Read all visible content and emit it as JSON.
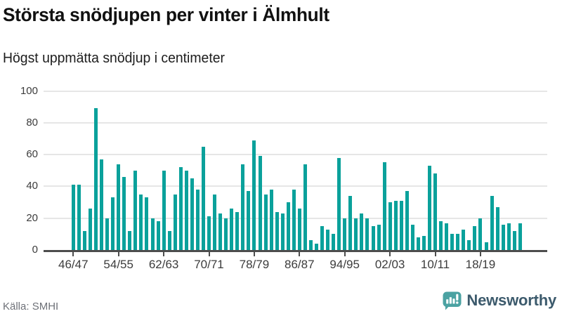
{
  "header": {
    "title": "Största snödjupen per vinter i Älmhult",
    "subtitle": "Högst uppmätta snödjup i centimeter"
  },
  "chart_data": {
    "type": "bar",
    "title": "Största snödjupen per vinter i Älmhult",
    "subtitle": "Högst uppmätta snödjup i centimeter",
    "unit": "cm",
    "ylim": [
      0,
      100
    ],
    "y_ticks": [
      0,
      20,
      40,
      60,
      80,
      100
    ],
    "x_tick_labels": [
      "46/47",
      "54/55",
      "62/63",
      "70/71",
      "78/79",
      "86/87",
      "94/95",
      "02/03",
      "10/11",
      "18/19"
    ],
    "grid": "horizontal",
    "legend": "none",
    "categories": [
      "46/47",
      "47/48",
      "48/49",
      "49/50",
      "50/51",
      "51/52",
      "52/53",
      "53/54",
      "54/55",
      "55/56",
      "56/57",
      "57/58",
      "58/59",
      "59/60",
      "60/61",
      "61/62",
      "62/63",
      "63/64",
      "64/65",
      "65/66",
      "66/67",
      "67/68",
      "68/69",
      "69/70",
      "70/71",
      "71/72",
      "72/73",
      "73/74",
      "74/75",
      "75/76",
      "76/77",
      "77/78",
      "78/79",
      "79/80",
      "80/81",
      "81/82",
      "82/83",
      "83/84",
      "84/85",
      "85/86",
      "86/87",
      "87/88",
      "88/89",
      "89/90",
      "90/91",
      "91/92",
      "92/93",
      "93/94",
      "94/95",
      "95/96",
      "96/97",
      "97/98",
      "98/99",
      "99/00",
      "00/01",
      "01/02",
      "02/03",
      "03/04",
      "04/05",
      "05/06",
      "06/07",
      "07/08",
      "08/09",
      "09/10",
      "10/11",
      "11/12",
      "12/13",
      "13/14",
      "14/15",
      "15/16",
      "16/17",
      "17/18",
      "18/19",
      "19/20",
      "20/21",
      "21/22",
      "22/23",
      "23/24",
      "24/25",
      "25/26"
    ],
    "values": [
      41,
      41,
      12,
      26,
      89,
      57,
      20,
      33,
      54,
      46,
      12,
      50,
      35,
      33,
      20,
      18,
      50,
      12,
      35,
      52,
      50,
      45,
      38,
      65,
      21,
      35,
      23,
      20,
      26,
      24,
      54,
      37,
      69,
      59,
      35,
      38,
      24,
      23,
      30,
      38,
      26,
      54,
      6,
      4,
      15,
      13,
      10,
      58,
      20,
      34,
      20,
      23,
      20,
      15,
      16,
      55,
      30,
      31,
      31,
      37,
      16,
      8,
      9,
      53,
      48,
      18,
      17,
      10,
      10,
      13,
      6,
      15,
      20,
      5,
      34,
      27,
      16,
      17,
      12,
      17
    ]
  },
  "footer": {
    "source": "Källa: SMHI",
    "brand": "Newsworthy"
  },
  "colors": {
    "bar": "#0aa19b",
    "axis": "#4d4d4d",
    "grid": "#e6e6e6",
    "tick_label": "#3c3c3c",
    "source_text": "#6e7178",
    "logo_icon": "#4ba2a2",
    "logo_text": "#3c5a6c"
  }
}
